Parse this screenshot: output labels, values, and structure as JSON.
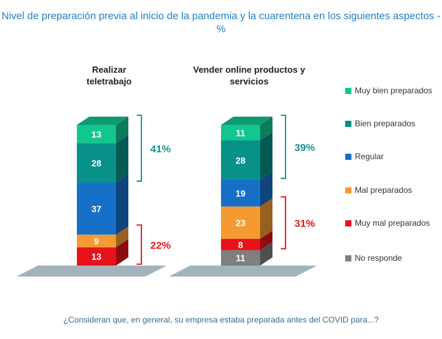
{
  "title": "Nivel de preparación previa al inicio de la pandemia y la cuarentena en los siguientes aspectos - %",
  "footnote": "¿Consideran que, en general, su empresa estaba preparada antes del COVID para...?",
  "chart_data": {
    "type": "bar",
    "stacked": true,
    "categories": [
      "Realizar teletrabajo",
      "Vender online productos y servicios"
    ],
    "series": [
      {
        "name": "No responde",
        "color": "#7f7f7f",
        "values": [
          0,
          11
        ]
      },
      {
        "name": "Muy mal preparados",
        "color": "#e8121a",
        "values": [
          13,
          8
        ]
      },
      {
        "name": "Mal preparados",
        "color": "#f59a32",
        "values": [
          9,
          23
        ]
      },
      {
        "name": "Regular",
        "color": "#1670c8",
        "values": [
          37,
          19
        ]
      },
      {
        "name": "Bien preparados",
        "color": "#079189",
        "values": [
          28,
          28
        ]
      },
      {
        "name": "Muy bien preparados",
        "color": "#12c68f",
        "values": [
          13,
          11
        ]
      }
    ],
    "legend_order": [
      "Muy bien preparados",
      "Bien preparados",
      "Regular",
      "Mal preparados",
      "Muy mal preparados",
      "No responde"
    ],
    "brackets": [
      {
        "category": 0,
        "series": [
          "Bien preparados",
          "Muy bien preparados"
        ],
        "label": "41%",
        "color": "#16938e"
      },
      {
        "category": 0,
        "series": [
          "Muy mal preparados",
          "Mal preparados"
        ],
        "label": "22%",
        "color": "#e8121a"
      },
      {
        "category": 1,
        "series": [
          "Bien preparados",
          "Muy bien preparados"
        ],
        "label": "39%",
        "color": "#16938e"
      },
      {
        "category": 1,
        "series": [
          "Muy mal preparados",
          "Mal preparados"
        ],
        "label": "31%",
        "color": "#e8121a"
      }
    ],
    "legend_position": "right"
  }
}
